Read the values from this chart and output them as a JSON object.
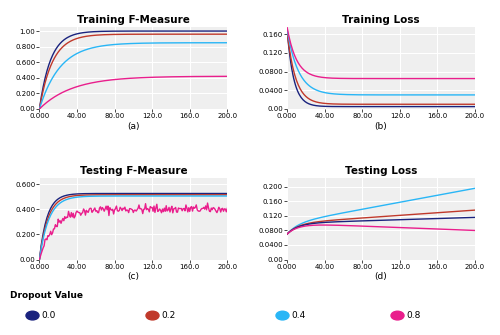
{
  "title_a": "Training F-Measure",
  "title_b": "Training Loss",
  "title_c": "Testing F-Measure",
  "title_d": "Testing Loss",
  "label_a": "(a)",
  "label_b": "(b)",
  "label_c": "(c)",
  "label_d": "(d)",
  "colors": {
    "0.0": "#1a237e",
    "0.2": "#c0392b",
    "0.4": "#29b6f6",
    "0.8": "#e91e8c"
  },
  "dropout_label": "Dropout Value",
  "legend_entries": [
    "0.0",
    "0.2",
    "0.4",
    "0.8"
  ],
  "background": "#efefef"
}
